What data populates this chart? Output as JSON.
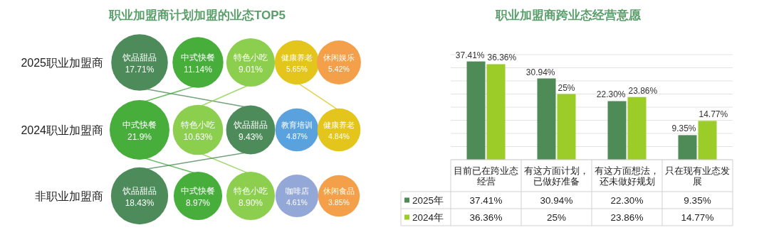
{
  "chart_data": [
    {
      "type": "other",
      "title": "职业加盟商计划加盟的业态TOP5",
      "ylabel": "2025职业加盟商",
      "categories": [
        "饮品甜品",
        "中式快餐",
        "特色小吃",
        "健康养老",
        "休闲娱乐"
      ],
      "values": [
        17.71,
        11.14,
        9.01,
        5.65,
        5.42
      ],
      "value_labels": [
        "17.71%",
        "11.14%",
        "9.01%",
        "5.65%",
        "5.42%"
      ],
      "colors": [
        "#4e8b5a",
        "#47ae3c",
        "#8cce4e",
        "#e3c51c",
        "#f4a04a"
      ]
    },
    {
      "type": "other",
      "ylabel": "2024职业加盟商",
      "categories": [
        "中式快餐",
        "特色小吃",
        "饮品甜品",
        "教育培训",
        "健康养老"
      ],
      "values": [
        21.9,
        10.63,
        9.43,
        4.87,
        4.84
      ],
      "value_labels": [
        "21.9%",
        "10.63%",
        "9.43%",
        "4.87%",
        "4.84%"
      ],
      "colors": [
        "#47ae3c",
        "#8cce4e",
        "#4e8b5a",
        "#5aa2de",
        "#e3c51c"
      ]
    },
    {
      "type": "other",
      "ylabel": "非职业加盟商",
      "categories": [
        "饮品甜品",
        "中式快餐",
        "特色小吃",
        "咖啡店",
        "休闲食品"
      ],
      "values": [
        18.43,
        8.97,
        8.9,
        4.61,
        3.85
      ],
      "value_labels": [
        "18.43%",
        "8.97%",
        "8.90%",
        "4.61%",
        "3.85%"
      ],
      "colors": [
        "#4e8b5a",
        "#47ae3c",
        "#8cce4e",
        "#94a8d8",
        "#f4a04a"
      ]
    },
    {
      "type": "bar",
      "title": "职业加盟商跨业态经营意愿",
      "categories": [
        "目前已在跨业态经营",
        "有这方面计划，已做好准备",
        "有这方面想法，还未做好规划",
        "只在现有业态发展"
      ],
      "series": [
        {
          "name": "2025年",
          "color": "#4e8b57",
          "values": [
            37.41,
            30.94,
            22.3,
            9.35
          ],
          "value_labels": [
            "37.41%",
            "30.94%",
            "22.30%",
            "9.35%"
          ]
        },
        {
          "name": "2024年",
          "color": "#9ccc27",
          "values": [
            36.36,
            25,
            23.86,
            14.77
          ],
          "value_labels": [
            "36.36%",
            "25%",
            "23.86%",
            "14.77%"
          ]
        }
      ],
      "ylim": [
        0,
        40
      ],
      "yticks": [
        {
          "value": 0,
          "label": null
        },
        {
          "value": 5,
          "label": null
        },
        {
          "value": 10,
          "label": null
        },
        {
          "value": 15,
          "label": null
        },
        {
          "value": 20,
          "label": null
        },
        {
          "value": 25,
          "label": null
        },
        {
          "value": 30,
          "label": null
        },
        {
          "value": 35,
          "label": null
        },
        {
          "value": 40,
          "label": null
        }
      ],
      "grid": "y",
      "legend": "bottom"
    }
  ]
}
